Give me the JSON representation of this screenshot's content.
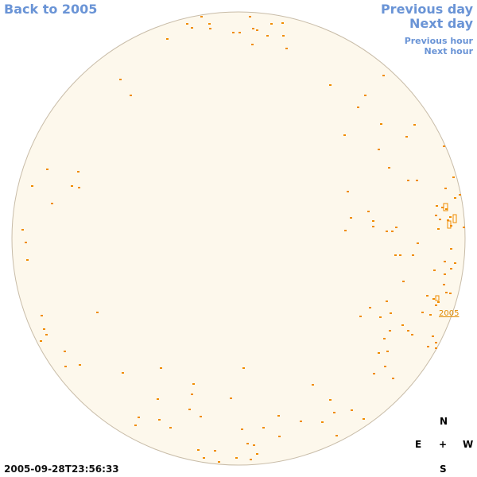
{
  "nav": {
    "back_label": "Back to 2005",
    "prev_day_label": "Previous day",
    "next_day_label": "Next day",
    "prev_hour_label": "Previous hour",
    "next_hour_label": "Next hour"
  },
  "map": {
    "disk_fill": "#fdf8ec",
    "disk_stroke": "#c8bca8",
    "spot_color": "#f08c00",
    "region_label": "2005"
  },
  "timestamp": "2005-09-28T23:56:33",
  "compass": {
    "north": "N",
    "east": "E",
    "center": "+",
    "west": "W",
    "south": "S"
  }
}
